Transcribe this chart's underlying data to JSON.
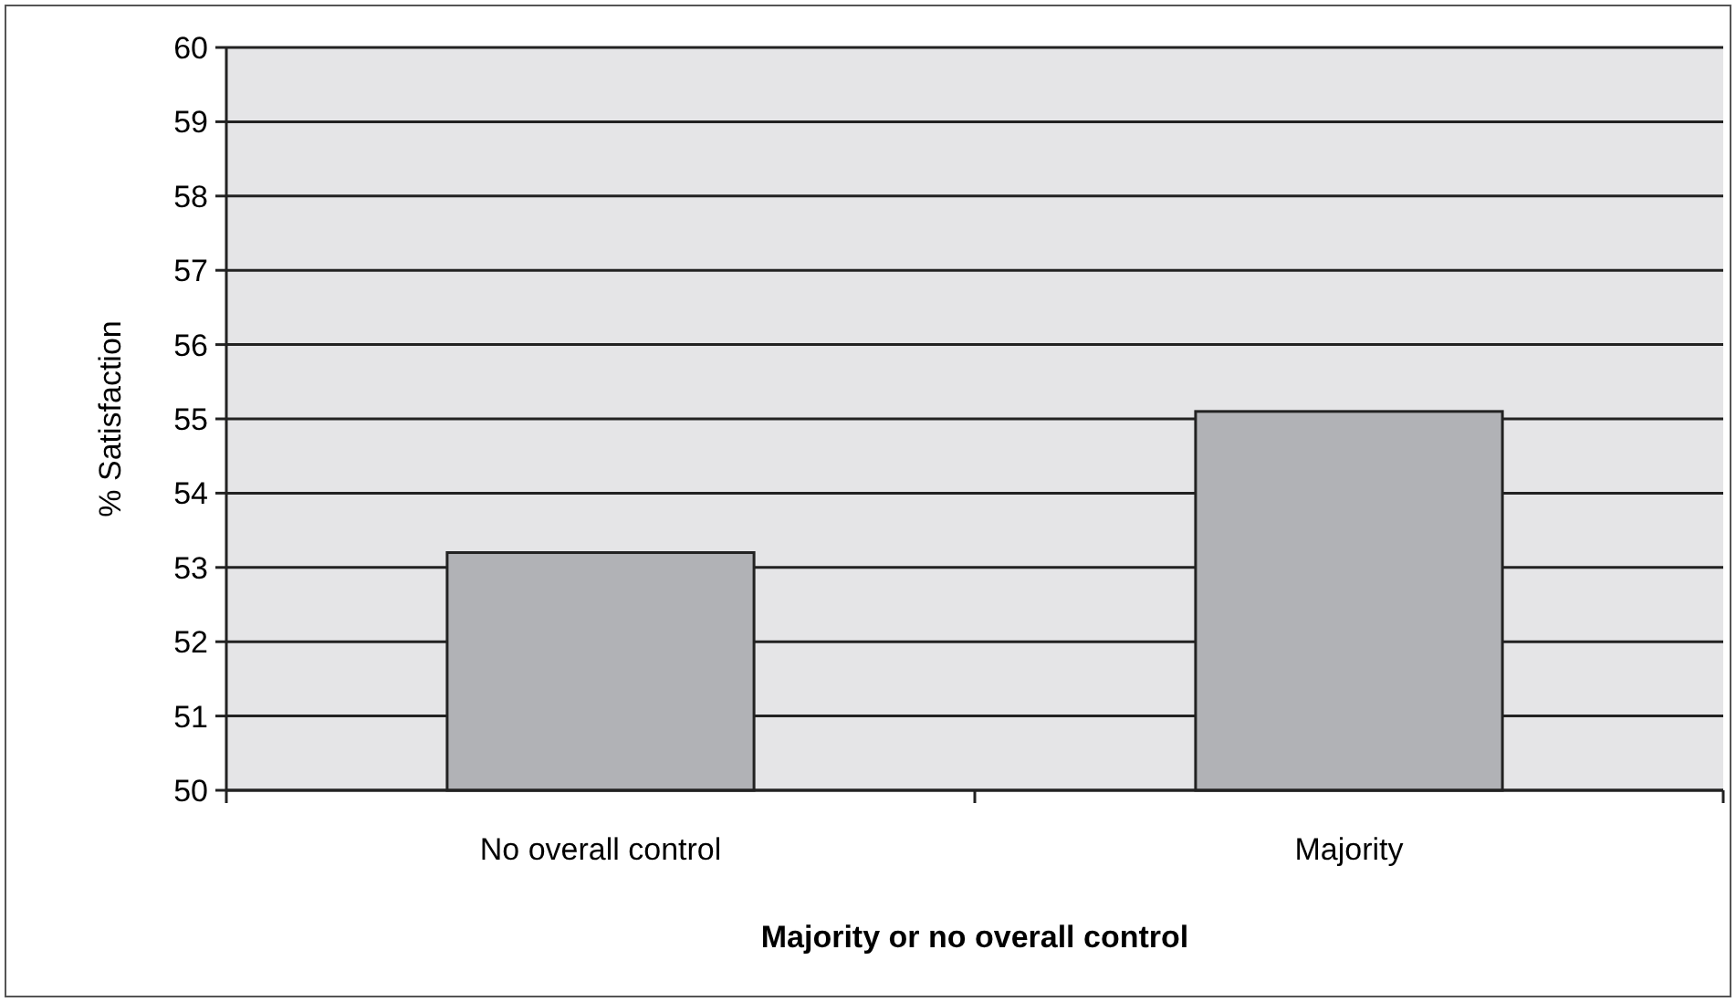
{
  "chart_data": {
    "type": "bar",
    "xlabel": "Majority or no overall control",
    "ylabel": "% Satisfaction",
    "categories": [
      "No overall control",
      "Majority"
    ],
    "values": [
      53.2,
      55.1
    ],
    "color": "#b1b2b6",
    "ylim": [
      50,
      60
    ],
    "yticks": [
      50,
      51,
      52,
      53,
      54,
      55,
      56,
      57,
      58,
      59,
      60
    ],
    "grid": "y"
  }
}
